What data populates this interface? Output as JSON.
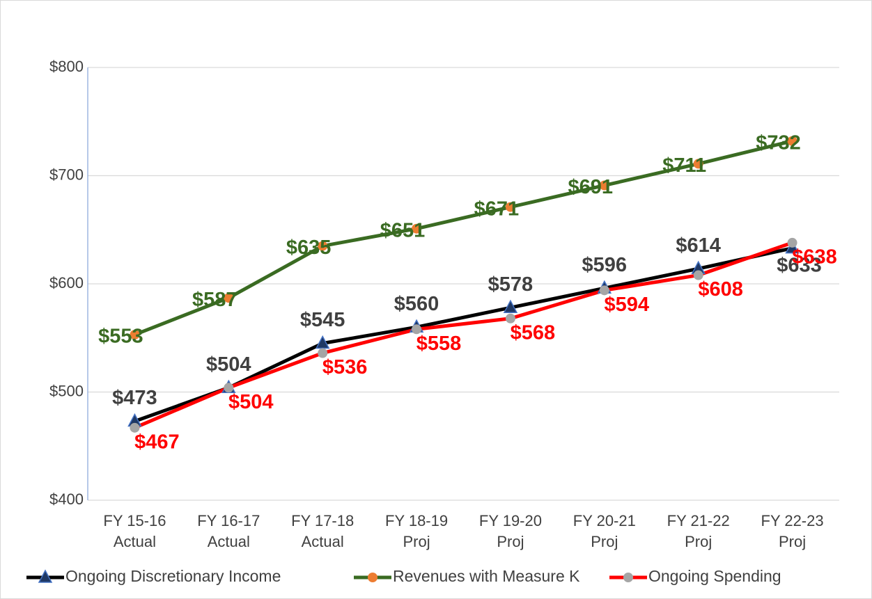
{
  "chart_data": {
    "type": "line",
    "categories": [
      [
        "FY 15-16",
        "Actual"
      ],
      [
        "FY 16-17",
        "Actual"
      ],
      [
        "FY 17-18",
        "Actual"
      ],
      [
        "FY 18-19",
        "Proj"
      ],
      [
        "FY 19-20",
        "Proj"
      ],
      [
        "FY 20-21",
        "Proj"
      ],
      [
        "FY 21-22",
        "Proj"
      ],
      [
        "FY 22-23",
        "Proj"
      ]
    ],
    "series": [
      {
        "name": "Ongoing Discretionary Income",
        "color": "#000000",
        "marker": "triangle",
        "marker_color": "#1f3864",
        "label_color": "#404040",
        "values": [
          473,
          504,
          545,
          560,
          578,
          596,
          614,
          633
        ],
        "value_labels": [
          "$473",
          "$504",
          "$545",
          "$560",
          "$578",
          "$596",
          "$614",
          "$633"
        ]
      },
      {
        "name": "Revenues with Measure K",
        "color": "#3a6b22",
        "marker": "circle",
        "marker_color": "#ed7d31",
        "label_color": "#3a6b22",
        "values": [
          553,
          587,
          635,
          651,
          671,
          691,
          711,
          732
        ],
        "value_labels": [
          "$553",
          "$587",
          "$635",
          "$651",
          "$671",
          "$691",
          "$711",
          "$732"
        ]
      },
      {
        "name": "Ongoing Spending",
        "color": "#ff0000",
        "marker": "circle",
        "marker_color": "#a5a5a5",
        "label_color": "#ff0000",
        "values": [
          467,
          504,
          536,
          558,
          568,
          594,
          608,
          638
        ],
        "value_labels": [
          "$467",
          "$504",
          "$536",
          "$558",
          "$568",
          "$594",
          "$608",
          "$638"
        ]
      }
    ],
    "ylim": [
      400,
      800
    ],
    "yticks": [
      {
        "value": 400,
        "label": "$400"
      },
      {
        "value": 500,
        "label": "$500"
      },
      {
        "value": 600,
        "label": "$600"
      },
      {
        "value": 700,
        "label": "$700"
      },
      {
        "value": 800,
        "label": "$800"
      }
    ],
    "grid": true,
    "legend": "bottom"
  }
}
